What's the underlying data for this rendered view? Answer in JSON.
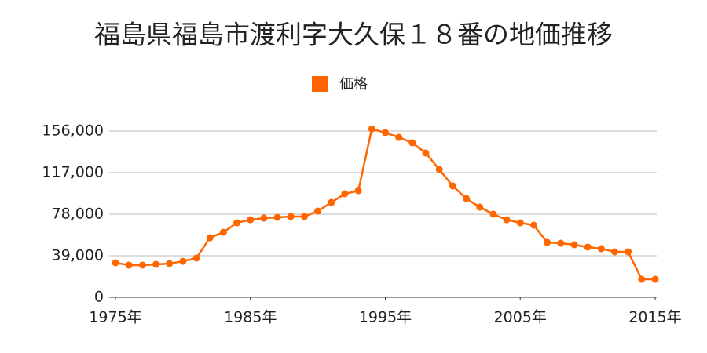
{
  "chart_data": {
    "type": "line",
    "title": "福島県福島市渡利字大久保１８番の地価推移",
    "x": [
      1975,
      1976,
      1977,
      1978,
      1979,
      1980,
      1981,
      1982,
      1983,
      1984,
      1985,
      1986,
      1987,
      1988,
      1989,
      1990,
      1991,
      1992,
      1993,
      1994,
      1995,
      1996,
      1997,
      1998,
      1999,
      2000,
      2001,
      2002,
      2003,
      2004,
      2005,
      2006,
      2007,
      2008,
      2009,
      2010,
      2011,
      2012,
      2013,
      2014,
      2015
    ],
    "series": [
      {
        "name": "価格",
        "color": "#ff6600",
        "values": [
          32400,
          30200,
          30200,
          30900,
          31600,
          33800,
          36800,
          55900,
          61100,
          69900,
          72800,
          74300,
          75000,
          75800,
          75800,
          80900,
          89000,
          97100,
          100000,
          158000,
          154500,
          150100,
          145000,
          135400,
          119900,
          104500,
          92700,
          84600,
          78000,
          72800,
          69900,
          67700,
          51500,
          50800,
          49300,
          47100,
          45600,
          42700,
          42700,
          16900,
          16900
        ]
      }
    ],
    "xlim": [
      1975,
      2015
    ],
    "xticks": [
      {
        "value": 1975,
        "label": "1975年"
      },
      {
        "value": 1985,
        "label": "1985年"
      },
      {
        "value": 1995,
        "label": "1995年"
      },
      {
        "value": 2005,
        "label": "2005年"
      },
      {
        "value": 2015,
        "label": "2015年"
      }
    ],
    "ylim": [
      0,
      156000
    ],
    "yticks": [
      0,
      {
        "value": 39000,
        "label": "39,000"
      },
      {
        "value": 78000,
        "label": "78,000"
      },
      {
        "value": 117000,
        "label": "117,000"
      },
      {
        "value": 156000,
        "label": "156,000"
      }
    ],
    "grid": true,
    "legend": "top"
  }
}
